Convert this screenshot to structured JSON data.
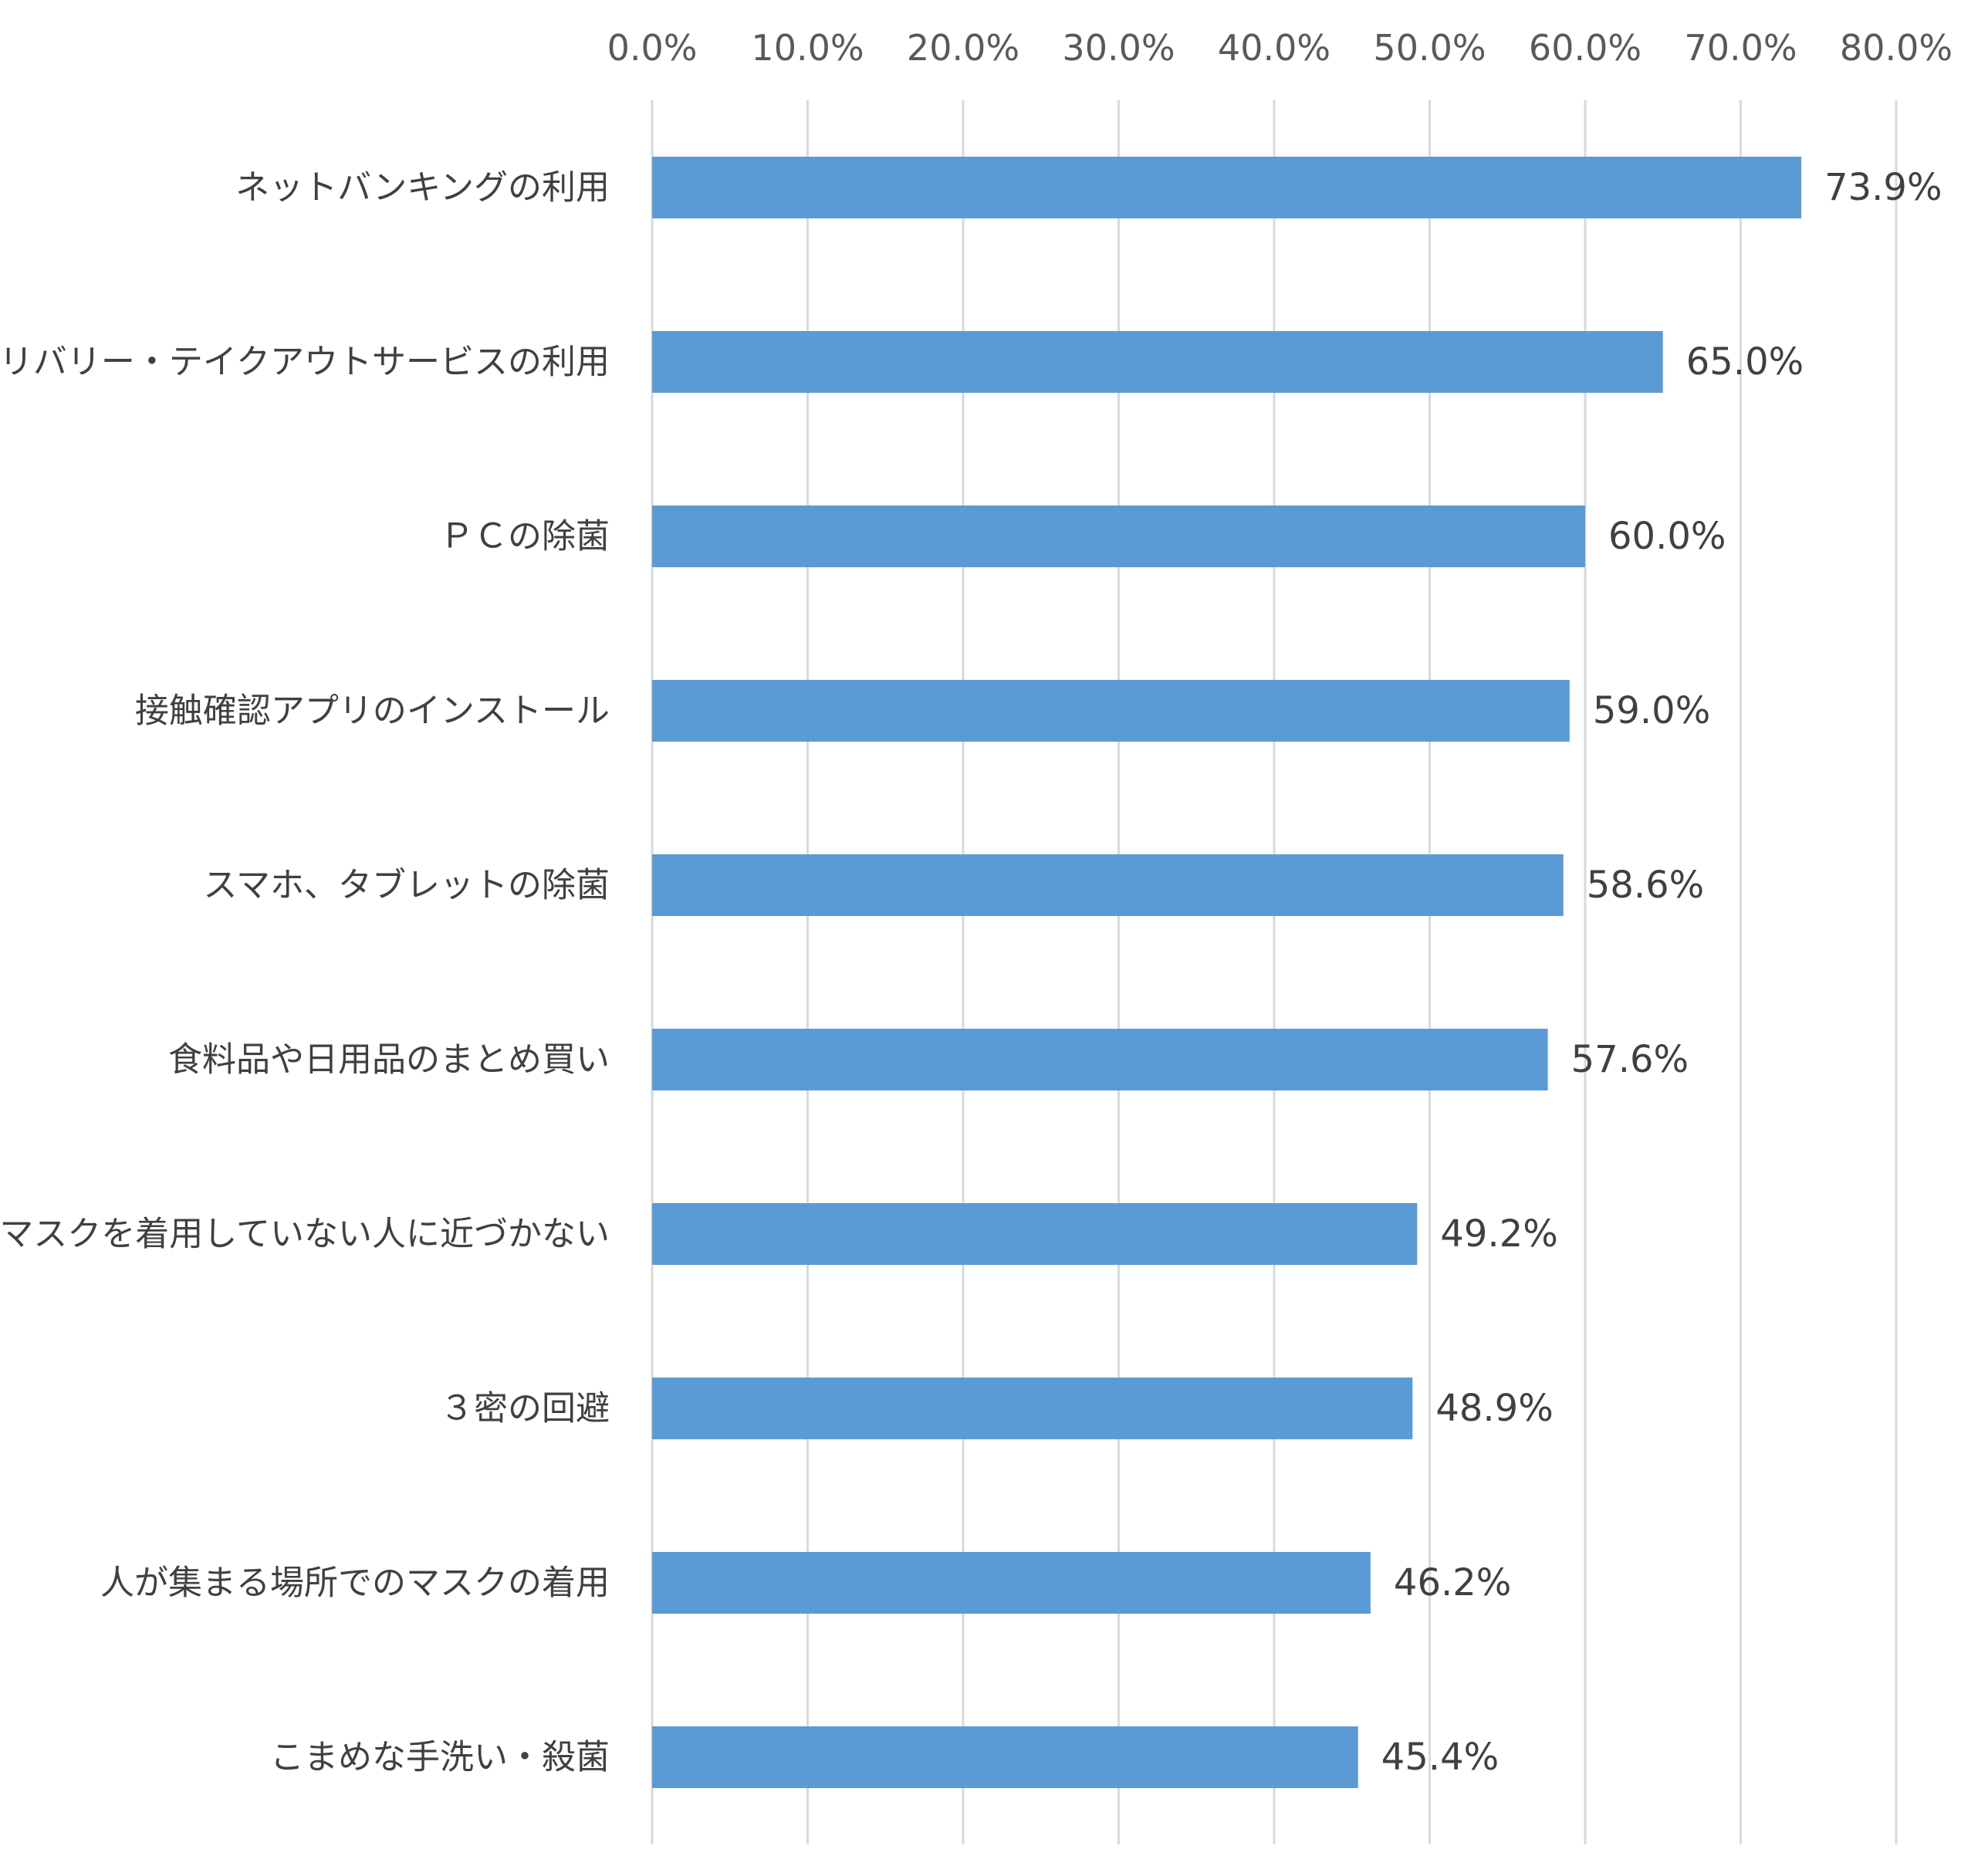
{
  "chart_data": {
    "type": "bar",
    "orientation": "horizontal",
    "title": "",
    "xlabel": "",
    "ylabel": "",
    "xlim": [
      0,
      80
    ],
    "x_tick_values": [
      0,
      10,
      20,
      30,
      40,
      50,
      60,
      70,
      80
    ],
    "x_tick_labels": [
      "0.0%",
      "10.0%",
      "20.0%",
      "30.0%",
      "40.0%",
      "50.0%",
      "60.0%",
      "70.0%",
      "80.0%"
    ],
    "x_axis_position": "top",
    "grid": true,
    "legend": "none",
    "bar_color": "#5b9bd5",
    "categories": [
      "ネットバンキングの利用",
      "デリバリー・テイクアウトサービスの利用",
      "ＰＣの除菌",
      "接触確認アプリのインストール",
      "スマホ、タブレットの除菌",
      "食料品や日用品のまとめ買い",
      "マスクを着用していない人に近づかない",
      "３密の回避",
      "人が集まる場所でのマスクの着用",
      "こまめな手洗い・殺菌"
    ],
    "values": [
      73.9,
      65.0,
      60.0,
      59.0,
      58.6,
      57.6,
      49.2,
      48.9,
      46.2,
      45.4
    ],
    "data_labels": [
      "73.9%",
      "65.0%",
      "60.0%",
      "59.0%",
      "58.6%",
      "57.6%",
      "49.2%",
      "48.9%",
      "46.2%",
      "45.4%"
    ]
  }
}
